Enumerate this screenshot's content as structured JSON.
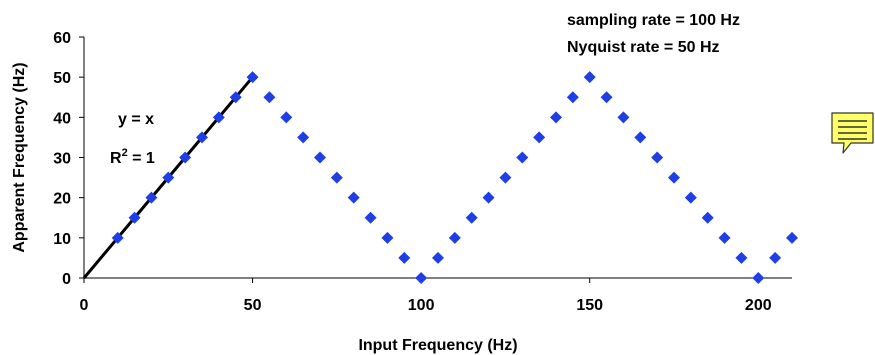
{
  "chart_data": {
    "type": "scatter",
    "xlabel": "Input Frequency (Hz)",
    "ylabel": "Apparent Frequency (Hz)",
    "xlim": [
      0,
      210
    ],
    "ylim": [
      0,
      60
    ],
    "x_ticks": [
      "0",
      "50",
      "100",
      "150",
      "200"
    ],
    "y_ticks": [
      "0",
      "10",
      "20",
      "30",
      "40",
      "50",
      "60"
    ],
    "grid": false,
    "series": [
      {
        "type": "scatter",
        "color": "#1f3fe6",
        "marker": "diamond",
        "x": [
          10,
          15,
          20,
          25,
          30,
          35,
          40,
          45,
          50,
          55,
          60,
          65,
          70,
          75,
          80,
          85,
          90,
          95,
          100,
          105,
          110,
          115,
          120,
          125,
          130,
          135,
          140,
          145,
          150,
          155,
          160,
          165,
          170,
          175,
          180,
          185,
          190,
          195,
          200,
          205,
          210
        ],
        "y": [
          10,
          15,
          20,
          25,
          30,
          35,
          40,
          45,
          50,
          45,
          40,
          35,
          30,
          25,
          20,
          15,
          10,
          5,
          0,
          5,
          10,
          15,
          20,
          25,
          30,
          35,
          40,
          45,
          50,
          45,
          40,
          35,
          30,
          25,
          20,
          15,
          10,
          5,
          0,
          5,
          10
        ]
      },
      {
        "type": "line",
        "color": "#000000",
        "x": [
          0,
          50
        ],
        "y": [
          0,
          50
        ]
      }
    ],
    "annotations": {
      "equation": "y = x",
      "r2_base": "R",
      "r2_exp": "2",
      "r2_rest": " = 1",
      "sampling_rate": "sampling rate = 100 Hz",
      "nyquist_rate": "Nyquist rate = 50 Hz"
    }
  },
  "note_icon": "note-comment-icon",
  "note_color": "#ffff66"
}
